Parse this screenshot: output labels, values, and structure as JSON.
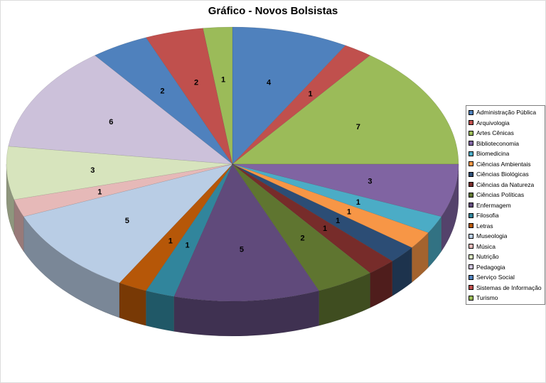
{
  "chart": {
    "title": "Gráfico - Novos Bolsistas"
  },
  "chart_data": {
    "type": "pie",
    "projection": "3d",
    "title": "Gráfico - Novos Bolsistas",
    "legend_position": "right",
    "data_labels": "values",
    "start_angle_deg": 0,
    "direction": "clockwise",
    "total": 48,
    "slices": [
      {
        "label": "Administração Pública",
        "value": 4,
        "color": "#4F81BD"
      },
      {
        "label": "Arquivologia",
        "value": 1,
        "color": "#C0504D"
      },
      {
        "label": "Artes Cênicas",
        "value": 7,
        "color": "#9BBB59"
      },
      {
        "label": "Biblioteconomia",
        "value": 3,
        "color": "#8064A2"
      },
      {
        "label": "Biomedicina",
        "value": 1,
        "color": "#4BACC6"
      },
      {
        "label": "Ciências Ambientais",
        "value": 1,
        "color": "#F79646"
      },
      {
        "label": "Ciências Biológicas",
        "value": 1,
        "color": "#2C4D75"
      },
      {
        "label": "Ciências da Natureza",
        "value": 1,
        "color": "#772C2A"
      },
      {
        "label": "Ciências Políticas",
        "value": 2,
        "color": "#5F7530"
      },
      {
        "label": "Enfermagem",
        "value": 5,
        "color": "#604A7B"
      },
      {
        "label": "Filosofia",
        "value": 1,
        "color": "#31859C"
      },
      {
        "label": "Letras",
        "value": 1,
        "color": "#B65708"
      },
      {
        "label": "Museologia",
        "value": 5,
        "color": "#B9CDE5"
      },
      {
        "label": "Música",
        "value": 1,
        "color": "#E6B9B8"
      },
      {
        "label": "Nutrição",
        "value": 3,
        "color": "#D7E4BD"
      },
      {
        "label": "Pedagogia",
        "value": 6,
        "color": "#CCC1DA"
      },
      {
        "label": "Serviço Social",
        "value": 2,
        "color": "#4F81BD"
      },
      {
        "label": "Sistemas de Informação",
        "value": 2,
        "color": "#C0504D"
      },
      {
        "label": "Turismo",
        "value": 1,
        "color": "#9BBB59"
      }
    ]
  }
}
